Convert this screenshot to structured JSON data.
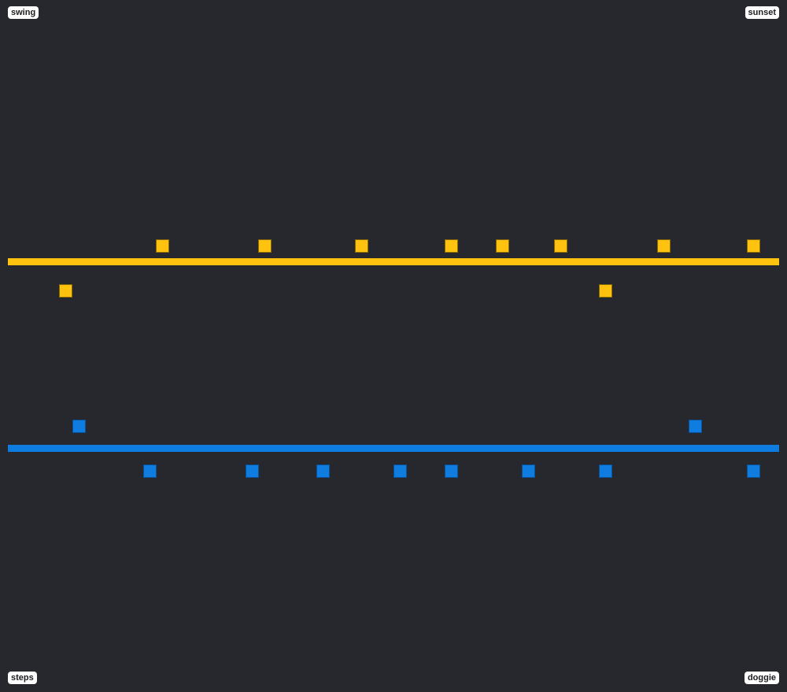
{
  "labels": {
    "top_left": "swing",
    "top_right": "sunset",
    "bottom_left": "steps",
    "bottom_right": "doggie"
  },
  "colors": {
    "background": "#26282d",
    "yellow": "#ffc20e",
    "blue": "#0f7ddf"
  }
}
